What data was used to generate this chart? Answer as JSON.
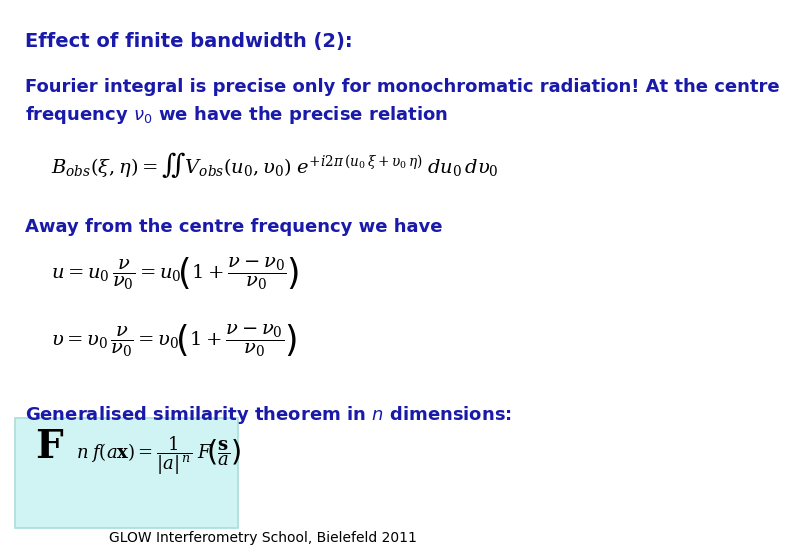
{
  "title": "Effect of finite bandwidth (2):",
  "text1": "Fourier integral is precise only for monochromatic radiation! At the centre\nfrequency $\\nu_0$ we have the precise relation",
  "eq1": "$B_{obs}(\\xi,\\eta)= \\iint V_{obs}(u_0,\\upsilon_0)\\; e^{+i2\\pi\\,(u_0\\,\\xi+\\upsilon_0\\,\\eta)}\\; du_0\\, d\\upsilon_0$",
  "text2": "Away from the centre frequency we have",
  "eq2a": "$u = u_0\\,\\dfrac{\\nu}{\\nu_0} = u_0\\!\\left(1+\\dfrac{\\nu-\\nu_0}{\\nu_0}\\right)$",
  "eq2b": "$\\upsilon = \\upsilon_0\\,\\dfrac{\\nu}{\\nu_0} = \\upsilon_0\\!\\left(1+\\dfrac{\\nu-\\nu_0}{\\nu_0}\\right)$",
  "text3": "Generalised similarity theorem in $n$ dimensions:",
  "eq3": "$\\mathbf{F}^{\\,n}\\; f(a\\,\\mathbf{x}) = \\dfrac{1}{|a|^{\\,n}}\\; F\\!\\left(\\dfrac{\\mathbf{s}}{a}\\right)$",
  "footer": "GLOW Interferometry School, Bielefeld 2011",
  "text_color": "#1a1aaa",
  "eq_box_color": "#d0f4f4",
  "background_color": "#ffffff",
  "title_fontsize": 14,
  "body_fontsize": 13,
  "eq_fontsize": 14,
  "footer_fontsize": 10
}
